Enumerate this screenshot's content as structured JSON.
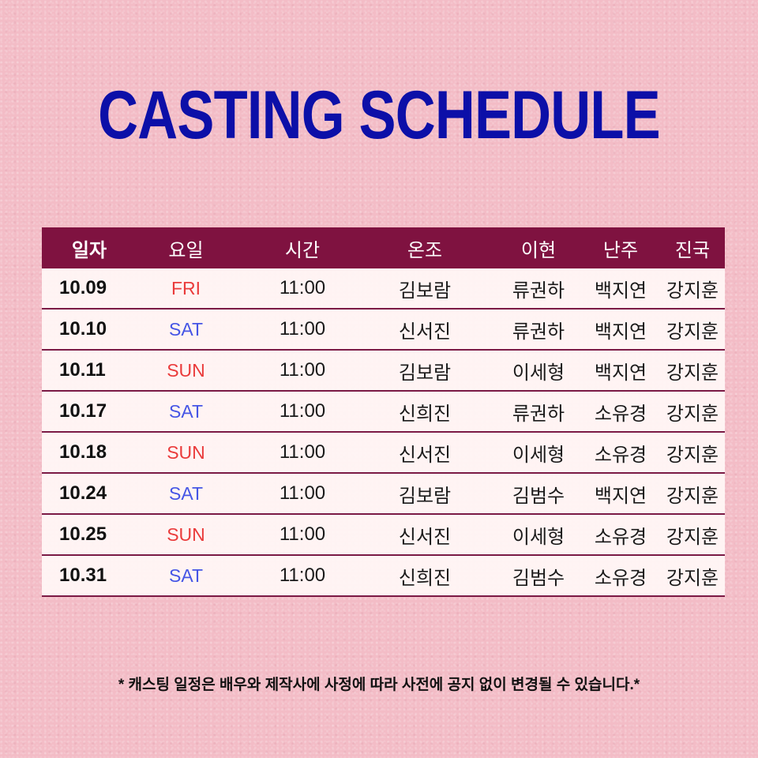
{
  "title": "CASTING SCHEDULE",
  "header": [
    "일자",
    "요일",
    "시간",
    "온조",
    "이현",
    "난주",
    "진국"
  ],
  "rows": [
    {
      "date": "10.09",
      "day": "FRI",
      "day_color": "red",
      "time": "11:00",
      "onjo": "김보람",
      "ihyeon": "류권하",
      "nanju": "백지연",
      "jinguk": "강지훈"
    },
    {
      "date": "10.10",
      "day": "SAT",
      "day_color": "blue",
      "time": "11:00",
      "onjo": "신서진",
      "ihyeon": "류권하",
      "nanju": "백지연",
      "jinguk": "강지훈"
    },
    {
      "date": "10.11",
      "day": "SUN",
      "day_color": "red",
      "time": "11:00",
      "onjo": "김보람",
      "ihyeon": "이세형",
      "nanju": "백지연",
      "jinguk": "강지훈"
    },
    {
      "date": "10.17",
      "day": "SAT",
      "day_color": "blue",
      "time": "11:00",
      "onjo": "신희진",
      "ihyeon": "류권하",
      "nanju": "소유경",
      "jinguk": "강지훈"
    },
    {
      "date": "10.18",
      "day": "SUN",
      "day_color": "red",
      "time": "11:00",
      "onjo": "신서진",
      "ihyeon": "이세형",
      "nanju": "소유경",
      "jinguk": "강지훈"
    },
    {
      "date": "10.24",
      "day": "SAT",
      "day_color": "blue",
      "time": "11:00",
      "onjo": "김보람",
      "ihyeon": "김범수",
      "nanju": "백지연",
      "jinguk": "강지훈"
    },
    {
      "date": "10.25",
      "day": "SUN",
      "day_color": "red",
      "time": "11:00",
      "onjo": "신서진",
      "ihyeon": "이세형",
      "nanju": "소유경",
      "jinguk": "강지훈"
    },
    {
      "date": "10.31",
      "day": "SAT",
      "day_color": "blue",
      "time": "11:00",
      "onjo": "신희진",
      "ihyeon": "김범수",
      "nanju": "소유경",
      "jinguk": "강지훈"
    }
  ],
  "footnote": "* 캐스팅 일정은 배우와 제작사에 사정에 따라 사전에 공지 없이 변경될 수 있습니다.*",
  "colors": {
    "background": "#f3bcc6",
    "title": "#0c0fa8",
    "header_bg": "#7f1240",
    "sat": "#4555e5",
    "sun_fri": "#ea3b3b"
  }
}
